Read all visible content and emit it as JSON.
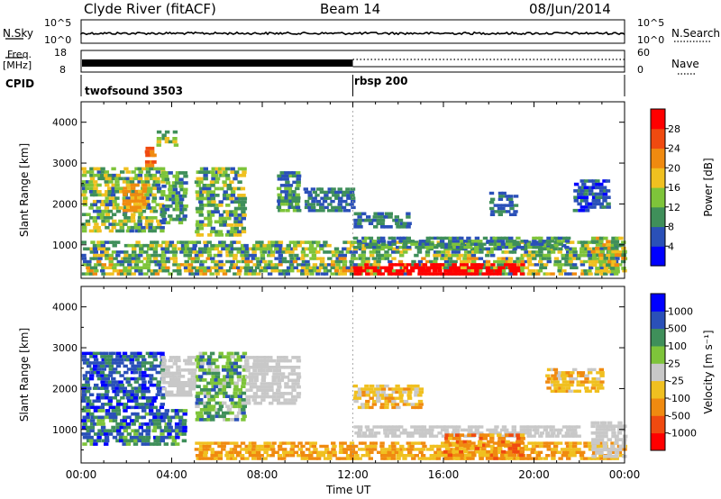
{
  "header": {
    "station": "Clyde River (fitACF)",
    "beam": "Beam 14",
    "date": "08/Jun/2014"
  },
  "noise_panel": {
    "left_label": "N.Sky",
    "left_top": "10^5",
    "left_bottom": "10^0",
    "right_top": "10^5",
    "right_bottom": "10^0",
    "right_label": "N.Search"
  },
  "freq_panel": {
    "left_label_1": "Freq.",
    "left_label_2": "[MHz]",
    "left_top": "18",
    "left_bottom": "8",
    "right_top": "60",
    "right_bottom": "0",
    "right_label": "Nave"
  },
  "cpid_panel": {
    "label": "CPID",
    "programs": [
      {
        "name": "twofsound 3503",
        "start_hour": 0
      },
      {
        "name": "rbsp 200",
        "start_hour": 12
      }
    ]
  },
  "colors": {
    "power": [
      "#0000ff",
      "#2a50b8",
      "#3f8f5a",
      "#7ec43a",
      "#f0c020",
      "#f08a10",
      "#f04a10",
      "#ff0000"
    ],
    "velocity": [
      "#ff0000",
      "#f04a10",
      "#f08a10",
      "#f0c020",
      "#c8c8c8",
      "#7ec43a",
      "#3f8f5a",
      "#2a50b8",
      "#0000ff"
    ]
  },
  "chart_data": [
    {
      "type": "heatmap",
      "quantity": "Power",
      "ylabel": "Slant Range [km]",
      "ylim": [
        180,
        4500
      ],
      "yticks": [
        "1000",
        "2000",
        "3000",
        "4000"
      ],
      "xlim": [
        0,
        24
      ],
      "colorbar_label": "Power [dB]",
      "colorbar_ticks": [
        "4",
        "8",
        "12",
        "16",
        "20",
        "24",
        "28"
      ],
      "colorbar_range": [
        0,
        32
      ],
      "blobs": [
        {
          "t": [
            0,
            3.6
          ],
          "r": [
            1300,
            2900
          ],
          "v": [
            6,
            20
          ]
        },
        {
          "t": [
            1.8,
            2.8
          ],
          "r": [
            1800,
            2500
          ],
          "v": [
            18,
            24
          ]
        },
        {
          "t": [
            2.8,
            3.2
          ],
          "r": [
            2900,
            3400
          ],
          "v": [
            20,
            28
          ]
        },
        {
          "t": [
            3.3,
            4.2
          ],
          "r": [
            3400,
            3800
          ],
          "v": [
            8,
            18
          ]
        },
        {
          "t": [
            3.5,
            4.6
          ],
          "r": [
            1500,
            2800
          ],
          "v": [
            6,
            16
          ]
        },
        {
          "t": [
            5.0,
            7.2
          ],
          "r": [
            1200,
            2900
          ],
          "v": [
            6,
            18
          ]
        },
        {
          "t": [
            8.6,
            9.6
          ],
          "r": [
            1800,
            2800
          ],
          "v": [
            4,
            14
          ]
        },
        {
          "t": [
            9.8,
            12.0
          ],
          "r": [
            1800,
            2400
          ],
          "v": [
            4,
            12
          ]
        },
        {
          "t": [
            12.0,
            14.5
          ],
          "r": [
            1400,
            1800
          ],
          "v": [
            4,
            12
          ]
        },
        {
          "t": [
            0,
            24
          ],
          "r": [
            700,
            1100
          ],
          "v": [
            6,
            18
          ]
        },
        {
          "t": [
            0,
            24
          ],
          "r": [
            250,
            700
          ],
          "v": [
            6,
            22
          ]
        },
        {
          "t": [
            12.0,
            19.5
          ],
          "r": [
            250,
            550
          ],
          "v": [
            28,
            32
          ]
        },
        {
          "t": [
            12.0,
            21.5
          ],
          "r": [
            900,
            1200
          ],
          "v": [
            4,
            14
          ]
        },
        {
          "t": [
            18.0,
            19.2
          ],
          "r": [
            1700,
            2300
          ],
          "v": [
            4,
            12
          ]
        },
        {
          "t": [
            21.7,
            23.3
          ],
          "r": [
            1800,
            2600
          ],
          "v": [
            2,
            10
          ]
        },
        {
          "t": [
            22.5,
            24
          ],
          "r": [
            300,
            1200
          ],
          "v": [
            8,
            24
          ]
        }
      ]
    },
    {
      "type": "heatmap",
      "quantity": "Velocity",
      "ylabel": "Slant Range [km]",
      "ylim": [
        180,
        4500
      ],
      "yticks": [
        "1000",
        "2000",
        "3000",
        "4000"
      ],
      "xlim": [
        0,
        24
      ],
      "xticks": [
        "00:00",
        "04:00",
        "08:00",
        "12:00",
        "16:00",
        "20:00",
        "00:00"
      ],
      "xlabel": "Time UT",
      "colorbar_label": "Velocity [m s⁻¹]",
      "colorbar_ticks": [
        "1000",
        "500",
        "100",
        "25",
        "-25",
        "-100",
        "-500",
        "-1000"
      ],
      "blobs": [
        {
          "t": [
            0,
            3.6
          ],
          "r": [
            1500,
            2900
          ],
          "v": [
            6,
            8
          ]
        },
        {
          "t": [
            0,
            4.6
          ],
          "r": [
            600,
            1500
          ],
          "v": [
            5,
            8
          ]
        },
        {
          "t": [
            3.5,
            5.0
          ],
          "r": [
            1800,
            2800
          ],
          "v": [
            4,
            4
          ]
        },
        {
          "t": [
            5.0,
            7.2
          ],
          "r": [
            1200,
            2900
          ],
          "v": [
            4,
            7
          ]
        },
        {
          "t": [
            7.2,
            9.6
          ],
          "r": [
            1600,
            2800
          ],
          "v": [
            4,
            4
          ]
        },
        {
          "t": [
            12.0,
            15.0
          ],
          "r": [
            1500,
            2100
          ],
          "v": [
            2,
            4
          ]
        },
        {
          "t": [
            5.0,
            24
          ],
          "r": [
            250,
            700
          ],
          "v": [
            2,
            3
          ]
        },
        {
          "t": [
            12.0,
            22.0
          ],
          "r": [
            800,
            1100
          ],
          "v": [
            4,
            4
          ]
        },
        {
          "t": [
            16.0,
            19.5
          ],
          "r": [
            250,
            900
          ],
          "v": [
            1,
            3
          ]
        },
        {
          "t": [
            20.5,
            23.0
          ],
          "r": [
            1900,
            2500
          ],
          "v": [
            2,
            4
          ]
        },
        {
          "t": [
            22.5,
            24
          ],
          "r": [
            300,
            1200
          ],
          "v": [
            4,
            4
          ]
        }
      ]
    }
  ]
}
